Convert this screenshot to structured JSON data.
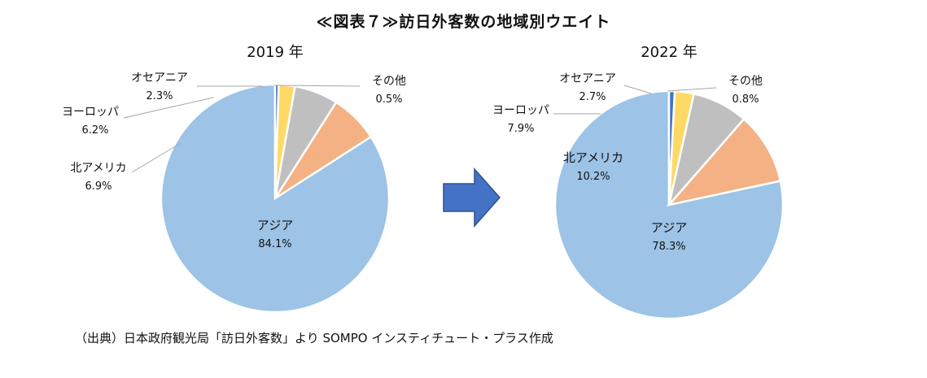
{
  "figure_title": "≪図表７≫訪日外客数の地域別ウエイト",
  "source_note": "（出典）日本政府観光局「訪日外客数」より SOMPO インスティチュート・プラス作成",
  "chart_data": [
    {
      "type": "pie",
      "title": "2019 年",
      "slices": [
        {
          "name": "アジア",
          "value": 84.1,
          "label": "84.1%",
          "color": "#9dc3e6"
        },
        {
          "name": "北アメリカ",
          "value": 6.9,
          "label": "6.9%",
          "color": "#f4b183"
        },
        {
          "name": "ヨーロッパ",
          "value": 6.2,
          "label": "6.2%",
          "color": "#bfbfbf"
        },
        {
          "name": "オセアニア",
          "value": 2.3,
          "label": "2.3%",
          "color": "#ffd966"
        },
        {
          "name": "その他",
          "value": 0.5,
          "label": "0.5%",
          "color": "#4472c4"
        }
      ]
    },
    {
      "type": "pie",
      "title": "2022 年",
      "slices": [
        {
          "name": "アジア",
          "value": 78.3,
          "label": "78.3%",
          "color": "#9dc3e6"
        },
        {
          "name": "北アメリカ",
          "value": 10.2,
          "label": "10.2%",
          "color": "#f4b183"
        },
        {
          "name": "ヨーロッパ",
          "value": 7.9,
          "label": "7.9%",
          "color": "#bfbfbf"
        },
        {
          "name": "オセアニア",
          "value": 2.7,
          "label": "2.7%",
          "color": "#ffd966"
        },
        {
          "name": "その他",
          "value": 0.8,
          "label": "0.8%",
          "color": "#4472c4"
        }
      ]
    }
  ],
  "arrow": {
    "color": "#4472c4",
    "direction": "right"
  }
}
